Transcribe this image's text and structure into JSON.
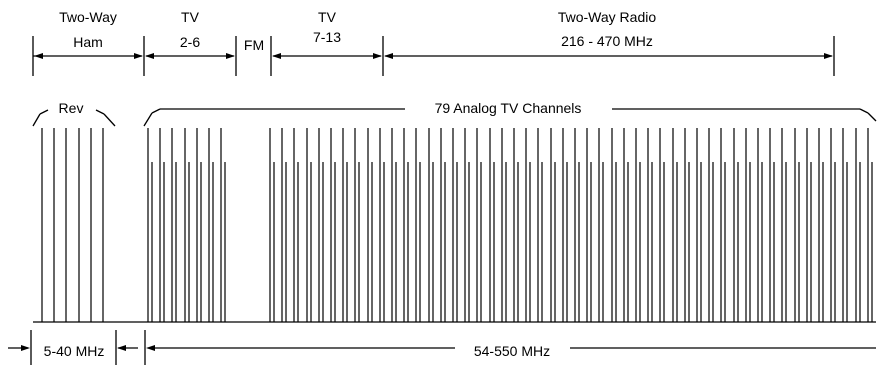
{
  "top_labels": {
    "two_way_top": "Two-Way",
    "ham": "Ham",
    "tv_low_top": "TV",
    "tv_low_range": "2-6",
    "fm": "FM",
    "tv_high_top": "TV",
    "tv_high_range": "7-13",
    "radio_top": "Two-Way Radio",
    "radio_range": "216 - 470 MHz"
  },
  "middle_labels": {
    "rev": "Rev",
    "analog": "79 Analog TV Channels"
  },
  "bottom_labels": {
    "return_band": "5-40 MHz",
    "forward_band": "54-550 MHz"
  },
  "colors": {
    "ink": "#000000",
    "background": "#ffffff"
  }
}
